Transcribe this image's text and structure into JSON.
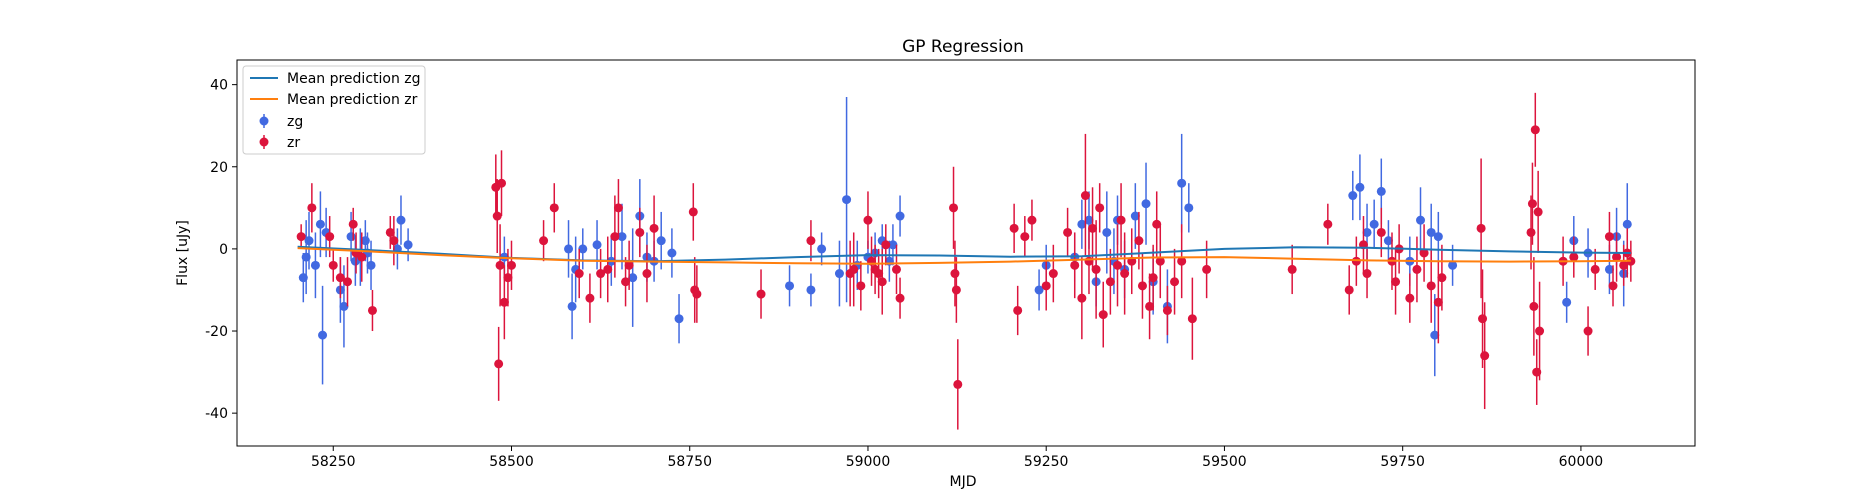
{
  "colors": {
    "zg": "#4169e1",
    "zr": "#dc143c",
    "mean_zg": "#1f77b4",
    "mean_zr": "#ff7f0e"
  },
  "chart_data": {
    "type": "scatter",
    "title": "GP Regression",
    "xlabel": "MJD",
    "ylabel": "Flux [uJy]",
    "xlim": [
      58115,
      60160
    ],
    "ylim": [
      -48,
      46
    ],
    "xticks": [
      58250,
      58500,
      58750,
      59000,
      59250,
      59500,
      59750,
      60000
    ],
    "yticks": [
      -40,
      -20,
      0,
      20,
      40
    ],
    "grid": false,
    "legend_position": "top-left",
    "legend": [
      "Mean prediction zg",
      "Mean prediction zr",
      "zg",
      "zr"
    ],
    "mean_predictions": [
      {
        "name": "Mean prediction zg",
        "x": [
          58200,
          58300,
          58400,
          58500,
          58600,
          58700,
          58800,
          58900,
          59000,
          59100,
          59200,
          59300,
          59400,
          59500,
          59600,
          59700,
          59800,
          59900,
          60000,
          60070
        ],
        "y": [
          0.5,
          -0.3,
          -1.2,
          -2.2,
          -2.8,
          -3.0,
          -2.6,
          -2.0,
          -1.5,
          -1.6,
          -1.9,
          -1.8,
          -0.9,
          0.0,
          0.4,
          0.3,
          -0.2,
          -0.6,
          -0.9,
          -1.0
        ]
      },
      {
        "name": "Mean prediction zr",
        "x": [
          58200,
          58300,
          58400,
          58500,
          58600,
          58700,
          58800,
          58900,
          59000,
          59100,
          59200,
          59300,
          59400,
          59500,
          59600,
          59700,
          59800,
          59900,
          60000,
          60070
        ],
        "y": [
          0.2,
          -0.6,
          -1.5,
          -2.3,
          -2.9,
          -3.1,
          -3.3,
          -3.5,
          -3.6,
          -3.4,
          -3.1,
          -2.6,
          -2.1,
          -2.0,
          -2.4,
          -2.8,
          -3.0,
          -3.1,
          -3.0,
          -2.9
        ]
      }
    ],
    "series": [
      {
        "name": "zg",
        "x": [
          58208,
          58212,
          58216,
          58225,
          58232,
          58235,
          58240,
          58260,
          58265,
          58275,
          58281,
          58288,
          58295,
          58298,
          58303,
          58340,
          58345,
          58355,
          58490,
          58580,
          58585,
          58590,
          58600,
          58620,
          58640,
          58655,
          58670,
          58680,
          58690,
          58700,
          58710,
          58725,
          58735,
          58890,
          58920,
          58935,
          58960,
          58970,
          58985,
          59000,
          59010,
          59020,
          59030,
          59035,
          59045,
          59240,
          59250,
          59290,
          59300,
          59310,
          59320,
          59335,
          59345,
          59350,
          59360,
          59375,
          59390,
          59400,
          59420,
          59440,
          59450,
          59680,
          59690,
          59700,
          59710,
          59720,
          59730,
          59760,
          59775,
          59790,
          59795,
          59800,
          59820,
          59980,
          59990,
          60010,
          60040,
          60050,
          60060,
          60065
        ],
        "y": [
          -7,
          -2,
          2,
          -4,
          6,
          -21,
          4,
          -10,
          -14,
          3,
          -3,
          -2,
          2,
          -1,
          -4,
          0,
          7,
          1,
          -2,
          0,
          -14,
          -5,
          0,
          1,
          -3,
          3,
          -7,
          8,
          -2,
          -3,
          2,
          -1,
          -17,
          -9,
          -10,
          0,
          -6,
          12,
          -4,
          -2,
          -1,
          2,
          -3,
          1,
          8,
          -10,
          -4,
          -2,
          6,
          7,
          -8,
          4,
          -3,
          7,
          -5,
          8,
          11,
          -8,
          -14,
          16,
          10,
          13,
          15,
          4,
          6,
          14,
          2,
          -3,
          7,
          4,
          -21,
          3,
          -4,
          -13,
          2,
          -1,
          -5,
          3,
          -6,
          6
        ],
        "err": [
          6,
          9,
          7,
          8,
          8,
          12,
          6,
          8,
          10,
          6,
          6,
          7,
          5,
          5,
          6,
          5,
          6,
          4,
          5,
          7,
          8,
          8,
          5,
          6,
          6,
          8,
          12,
          9,
          6,
          5,
          7,
          6,
          6,
          5,
          4,
          4,
          8,
          25,
          6,
          4,
          5,
          4,
          5,
          5,
          5,
          5,
          5,
          6,
          6,
          7,
          6,
          10,
          8,
          6,
          7,
          8,
          10,
          8,
          9,
          12,
          6,
          6,
          8,
          7,
          6,
          8,
          5,
          6,
          8,
          7,
          10,
          6,
          5,
          5,
          6,
          6,
          6,
          7,
          8,
          10
        ]
      },
      {
        "name": "zr",
        "x": [
          58205,
          58220,
          58245,
          58250,
          58260,
          58270,
          58278,
          58282,
          58290,
          58305,
          58330,
          58335,
          58478,
          58480,
          58482,
          58484,
          58486,
          58490,
          58495,
          58500,
          58545,
          58560,
          58595,
          58610,
          58625,
          58635,
          58645,
          58650,
          58660,
          58665,
          58680,
          58690,
          58700,
          58755,
          58757,
          58760,
          58850,
          58920,
          58975,
          58980,
          58990,
          59000,
          59005,
          59010,
          59015,
          59020,
          59025,
          59040,
          59045,
          59120,
          59122,
          59124,
          59126,
          59205,
          59210,
          59220,
          59230,
          59250,
          59260,
          59280,
          59290,
          59300,
          59305,
          59310,
          59315,
          59320,
          59325,
          59330,
          59340,
          59350,
          59355,
          59360,
          59370,
          59380,
          59385,
          59395,
          59400,
          59405,
          59410,
          59420,
          59430,
          59440,
          59455,
          59475,
          59595,
          59645,
          59675,
          59685,
          59695,
          59700,
          59720,
          59735,
          59740,
          59745,
          59760,
          59770,
          59780,
          59790,
          59800,
          59805,
          59860,
          59862,
          59865,
          59930,
          59932,
          59934,
          59936,
          59938,
          59940,
          59942,
          59975,
          59990,
          60010,
          60020,
          60040,
          60045,
          60050,
          60060,
          60065,
          60070
        ],
        "y": [
          3,
          10,
          3,
          -4,
          -7,
          -8,
          6,
          -1,
          -2,
          -15,
          4,
          2,
          15,
          8,
          -28,
          -4,
          16,
          -13,
          -7,
          -4,
          2,
          10,
          -6,
          -12,
          -6,
          -5,
          3,
          10,
          -8,
          -4,
          4,
          -6,
          5,
          9,
          -10,
          -11,
          -11,
          2,
          -6,
          -5,
          -9,
          7,
          -3,
          -5,
          -6,
          -8,
          1,
          -5,
          -12,
          10,
          -6,
          -10,
          -33,
          5,
          -15,
          3,
          7,
          -9,
          -6,
          4,
          -4,
          -12,
          13,
          -3,
          5,
          -5,
          10,
          -16,
          -8,
          -4,
          7,
          -6,
          -3,
          2,
          -9,
          -14,
          -7,
          6,
          -3,
          -15,
          -8,
          -3,
          -17,
          -5,
          -5,
          6,
          -10,
          -3,
          1,
          -6,
          4,
          -3,
          -8,
          0,
          -12,
          -5,
          -1,
          -9,
          -13,
          -7,
          5,
          -17,
          -26,
          4,
          11,
          -14,
          29,
          -30,
          9,
          -20,
          -3,
          -2,
          -20,
          -5,
          3,
          -9,
          -2,
          -4,
          -1,
          -3
        ],
        "err": [
          3,
          6,
          5,
          4,
          5,
          6,
          4,
          5,
          6,
          5,
          4,
          6,
          8,
          9,
          9,
          10,
          8,
          9,
          7,
          6,
          5,
          6,
          6,
          6,
          6,
          8,
          10,
          7,
          6,
          6,
          6,
          7,
          8,
          7,
          8,
          7,
          6,
          5,
          8,
          9,
          6,
          7,
          6,
          6,
          6,
          8,
          5,
          6,
          5,
          10,
          8,
          8,
          11,
          6,
          6,
          5,
          5,
          6,
          7,
          6,
          8,
          10,
          15,
          8,
          10,
          12,
          6,
          8,
          8,
          10,
          9,
          10,
          8,
          7,
          8,
          8,
          8,
          8,
          9,
          6,
          8,
          9,
          10,
          7,
          6,
          5,
          6,
          6,
          7,
          6,
          6,
          7,
          8,
          6,
          6,
          8,
          7,
          9,
          10,
          8,
          17,
          12,
          13,
          9,
          10,
          12,
          9,
          8,
          10,
          12,
          6,
          5,
          6,
          5,
          6,
          5,
          6,
          5,
          6,
          5
        ]
      }
    ]
  }
}
